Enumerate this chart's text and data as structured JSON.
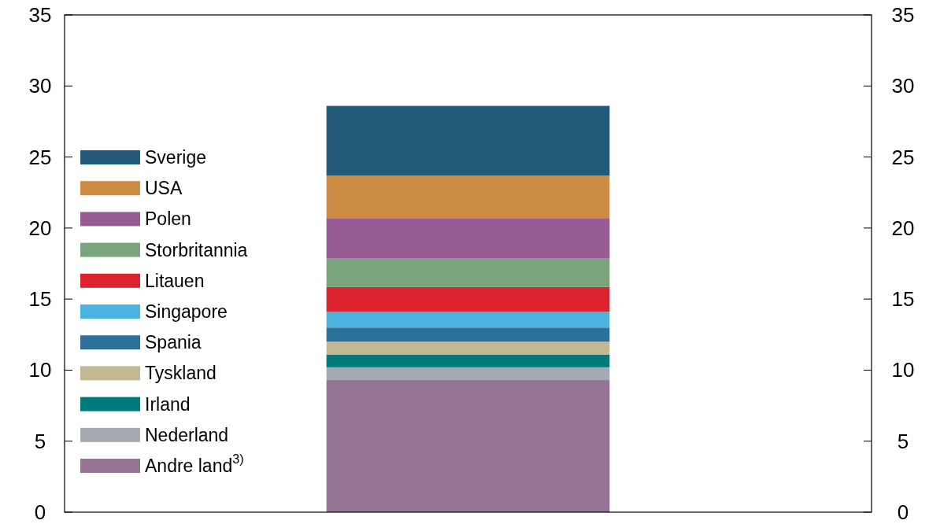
{
  "chart_data": {
    "type": "bar",
    "stacked": true,
    "categories": [
      null
    ],
    "legend": "left",
    "grid": false,
    "ylim": [
      0,
      35
    ],
    "yticks": [
      0,
      5,
      10,
      15,
      20,
      25,
      30,
      35
    ],
    "y2lim": [
      0,
      35
    ],
    "y2ticks": [
      0,
      5,
      10,
      15,
      20,
      25,
      30,
      35
    ],
    "series": [
      {
        "name": "Andre land$^{3)}$",
        "color": "#967496",
        "values": [
          9.3
        ]
      },
      {
        "name": "Nederland",
        "color": "#a4aab0",
        "values": [
          0.9
        ]
      },
      {
        "name": "Irland",
        "color": "#017a7c",
        "values": [
          0.9
        ]
      },
      {
        "name": "Tyskland",
        "color": "#c4b894",
        "values": [
          0.9
        ]
      },
      {
        "name": "Spania",
        "color": "#2b7199",
        "values": [
          1.0
        ]
      },
      {
        "name": "Singapore",
        "color": "#4ab3e0",
        "values": [
          1.1
        ]
      },
      {
        "name": "Litauen",
        "color": "#dc222e",
        "values": [
          1.75
        ]
      },
      {
        "name": "Storbritannia",
        "color": "#79a57c",
        "values": [
          2.0
        ]
      },
      {
        "name": "Polen",
        "color": "#975b95",
        "values": [
          2.85
        ]
      },
      {
        "name": "USA",
        "color": "#cd8b43",
        "values": [
          3.0
        ]
      },
      {
        "name": "Sverige",
        "color": "#225a7a",
        "values": [
          4.9
        ]
      }
    ]
  }
}
